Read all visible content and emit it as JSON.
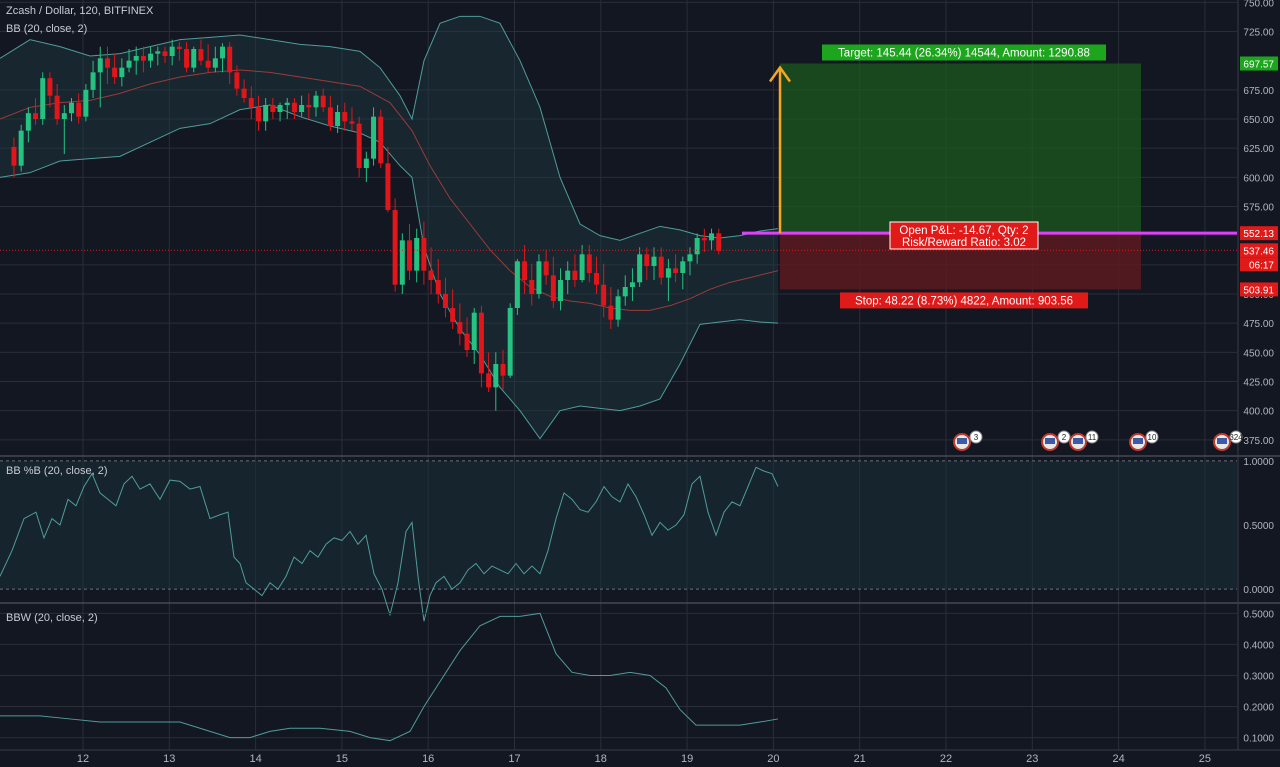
{
  "header": {
    "symbol": "Zcash / Dollar, 120, BITFINEX",
    "indicator_main": "BB (20, close, 2)",
    "indicator_pctb": "BB %B (20, close, 2)",
    "indicator_bbw": "BBW (20, close, 2)"
  },
  "colors": {
    "background": "#131722",
    "grid": "#2a2e39",
    "up": "#26c281",
    "down": "#e0161a",
    "band": "#4f9d9a",
    "basis": "#9b3b3b",
    "target_zone": "#1e5a1e",
    "stop_zone": "#5a1a1e",
    "entry_line": "#e040fb",
    "arrow": "#f5a623",
    "label_green": "#1ea51e",
    "label_red": "#e01919"
  },
  "position": {
    "target_label": "Target: 145.44 (26.34%) 14544, Amount: 1290.88",
    "stop_label": "Stop: 48.22 (8.73%) 4822, Amount: 903.56",
    "pnl_line1": "Open P&L: -14.67, Qty: 2",
    "pnl_line2": "Risk/Reward Ratio: 3.02",
    "entry_price": 552.13,
    "target_price": 697.57,
    "stop_price": 503.91
  },
  "price_tags": {
    "target": "697.57",
    "entry": "552.13",
    "last": "537.46",
    "countdown": "06:17",
    "stop": "503.91"
  },
  "events": [
    {
      "count": "3"
    },
    {
      "count": "2"
    },
    {
      "count": "11"
    },
    {
      "count": "10"
    },
    {
      "count": "324"
    }
  ],
  "chart_data": {
    "type": "candlestick",
    "title": "Zcash / Dollar, 120, BITFINEX",
    "x_ticks": [
      "12",
      "13",
      "14",
      "15",
      "16",
      "17",
      "18",
      "19",
      "20",
      "21",
      "22",
      "23",
      "24",
      "25"
    ],
    "y_ticks": [
      "375.00",
      "400.00",
      "425.00",
      "450.00",
      "475.00",
      "500.00",
      "525.00",
      "575.00",
      "600.00",
      "625.00",
      "650.00",
      "675.00",
      "725.00",
      "750.00"
    ],
    "ylim": [
      362,
      752
    ],
    "pctb_ticks": [
      "0.0000",
      "0.5000",
      "1.0000"
    ],
    "pctb_ylim": [
      -0.1,
      1.03
    ],
    "bbw_ticks": [
      "0.1000",
      "0.2000",
      "0.3000",
      "0.4000",
      "0.5000"
    ],
    "bbw_ylim": [
      0.06,
      0.53
    ],
    "day_start": 11.2,
    "bars_per_day": 12,
    "ohlc": [
      [
        626,
        634,
        600,
        610
      ],
      [
        610,
        645,
        605,
        640
      ],
      [
        640,
        660,
        630,
        655
      ],
      [
        655,
        668,
        645,
        650
      ],
      [
        650,
        690,
        645,
        685
      ],
      [
        685,
        690,
        660,
        670
      ],
      [
        670,
        680,
        645,
        650
      ],
      [
        650,
        662,
        620,
        655
      ],
      [
        655,
        668,
        648,
        664
      ],
      [
        664,
        672,
        646,
        652
      ],
      [
        652,
        680,
        648,
        675
      ],
      [
        675,
        700,
        668,
        690
      ],
      [
        690,
        712,
        660,
        702
      ],
      [
        702,
        712,
        680,
        694
      ],
      [
        694,
        706,
        680,
        686
      ],
      [
        686,
        702,
        678,
        694
      ],
      [
        694,
        710,
        690,
        700
      ],
      [
        700,
        712,
        688,
        704
      ],
      [
        704,
        712,
        690,
        700
      ],
      [
        700,
        712,
        694,
        706
      ],
      [
        706,
        712,
        696,
        708
      ],
      [
        708,
        712,
        698,
        704
      ],
      [
        704,
        718,
        696,
        712
      ],
      [
        712,
        716,
        700,
        710
      ],
      [
        710,
        716,
        690,
        694
      ],
      [
        694,
        712,
        690,
        710
      ],
      [
        710,
        718,
        696,
        700
      ],
      [
        700,
        714,
        690,
        694
      ],
      [
        694,
        712,
        690,
        702
      ],
      [
        702,
        715,
        690,
        712
      ],
      [
        712,
        716,
        680,
        690
      ],
      [
        690,
        696,
        670,
        676
      ],
      [
        676,
        684,
        664,
        668
      ],
      [
        668,
        678,
        650,
        660
      ],
      [
        660,
        670,
        640,
        648
      ],
      [
        648,
        668,
        640,
        662
      ],
      [
        662,
        668,
        650,
        656
      ],
      [
        656,
        664,
        648,
        662
      ],
      [
        662,
        668,
        650,
        664
      ],
      [
        664,
        668,
        650,
        656
      ],
      [
        656,
        670,
        652,
        662
      ],
      [
        662,
        672,
        650,
        660
      ],
      [
        660,
        674,
        652,
        670
      ],
      [
        670,
        676,
        656,
        660
      ],
      [
        660,
        670,
        640,
        644
      ],
      [
        644,
        662,
        638,
        656
      ],
      [
        656,
        664,
        640,
        648
      ],
      [
        648,
        660,
        640,
        646
      ],
      [
        646,
        652,
        600,
        608
      ],
      [
        608,
        622,
        596,
        616
      ],
      [
        616,
        660,
        610,
        652
      ],
      [
        652,
        658,
        608,
        612
      ],
      [
        612,
        626,
        570,
        572
      ],
      [
        572,
        582,
        502,
        508
      ],
      [
        508,
        552,
        500,
        546
      ],
      [
        546,
        560,
        512,
        520
      ],
      [
        520,
        556,
        510,
        548
      ],
      [
        548,
        562,
        508,
        520
      ],
      [
        520,
        540,
        500,
        512
      ],
      [
        512,
        530,
        492,
        500
      ],
      [
        500,
        514,
        480,
        488
      ],
      [
        488,
        504,
        470,
        476
      ],
      [
        476,
        492,
        456,
        466
      ],
      [
        466,
        480,
        446,
        452
      ],
      [
        452,
        488,
        440,
        484
      ],
      [
        484,
        490,
        420,
        432
      ],
      [
        432,
        450,
        416,
        420
      ],
      [
        420,
        450,
        400,
        440
      ],
      [
        440,
        452,
        418,
        430
      ],
      [
        430,
        492,
        428,
        488
      ],
      [
        488,
        530,
        482,
        528
      ],
      [
        528,
        542,
        500,
        512
      ],
      [
        512,
        526,
        490,
        500
      ],
      [
        500,
        534,
        496,
        528
      ],
      [
        528,
        538,
        508,
        516
      ],
      [
        516,
        532,
        488,
        494
      ],
      [
        494,
        522,
        486,
        512
      ],
      [
        512,
        528,
        500,
        520
      ],
      [
        520,
        534,
        506,
        512
      ],
      [
        512,
        542,
        510,
        534
      ],
      [
        534,
        542,
        510,
        518
      ],
      [
        518,
        532,
        500,
        508
      ],
      [
        508,
        526,
        480,
        490
      ],
      [
        490,
        506,
        470,
        478
      ],
      [
        478,
        504,
        472,
        498
      ],
      [
        498,
        516,
        490,
        506
      ],
      [
        506,
        522,
        494,
        510
      ],
      [
        510,
        540,
        506,
        534
      ],
      [
        534,
        540,
        512,
        524
      ],
      [
        524,
        540,
        512,
        532
      ],
      [
        532,
        540,
        508,
        514
      ],
      [
        514,
        530,
        494,
        522
      ],
      [
        522,
        534,
        510,
        518
      ],
      [
        518,
        532,
        504,
        528
      ],
      [
        528,
        540,
        516,
        534
      ],
      [
        534,
        552,
        526,
        548
      ],
      [
        548,
        556,
        536,
        546
      ],
      [
        546,
        556,
        538,
        552
      ],
      [
        552,
        556,
        534,
        537
      ]
    ],
    "bb_upper": [
      [
        0,
        702
      ],
      [
        30,
        718
      ],
      [
        60,
        712
      ],
      [
        90,
        704
      ],
      [
        120,
        706
      ],
      [
        150,
        712
      ],
      [
        180,
        718
      ],
      [
        210,
        720
      ],
      [
        240,
        722
      ],
      [
        270,
        718
      ],
      [
        300,
        714
      ],
      [
        330,
        712
      ],
      [
        360,
        708
      ],
      [
        380,
        694
      ],
      [
        400,
        670
      ],
      [
        412,
        650
      ],
      [
        424,
        700
      ],
      [
        440,
        732
      ],
      [
        460,
        738
      ],
      [
        480,
        738
      ],
      [
        500,
        732
      ],
      [
        520,
        700
      ],
      [
        540,
        660
      ],
      [
        560,
        600
      ],
      [
        580,
        560
      ],
      [
        600,
        550
      ],
      [
        620,
        546
      ],
      [
        640,
        552
      ],
      [
        660,
        558
      ],
      [
        680,
        555
      ],
      [
        700,
        550
      ],
      [
        720,
        548
      ],
      [
        740,
        550
      ],
      [
        760,
        554
      ],
      [
        778,
        556
      ]
    ],
    "bb_lower": [
      [
        0,
        600
      ],
      [
        30,
        604
      ],
      [
        60,
        614
      ],
      [
        90,
        616
      ],
      [
        120,
        618
      ],
      [
        150,
        630
      ],
      [
        180,
        642
      ],
      [
        210,
        646
      ],
      [
        240,
        658
      ],
      [
        270,
        662
      ],
      [
        300,
        652
      ],
      [
        330,
        644
      ],
      [
        360,
        638
      ],
      [
        380,
        630
      ],
      [
        400,
        610
      ],
      [
        412,
        600
      ],
      [
        424,
        540
      ],
      [
        440,
        500
      ],
      [
        460,
        470
      ],
      [
        480,
        448
      ],
      [
        500,
        420
      ],
      [
        520,
        400
      ],
      [
        540,
        376
      ],
      [
        560,
        400
      ],
      [
        580,
        404
      ],
      [
        600,
        402
      ],
      [
        620,
        400
      ],
      [
        640,
        404
      ],
      [
        660,
        410
      ],
      [
        680,
        440
      ],
      [
        700,
        474
      ],
      [
        720,
        476
      ],
      [
        740,
        478
      ],
      [
        760,
        476
      ],
      [
        778,
        475
      ]
    ],
    "bb_basis": [
      [
        0,
        650
      ],
      [
        30,
        660
      ],
      [
        60,
        664
      ],
      [
        90,
        666
      ],
      [
        120,
        672
      ],
      [
        150,
        680
      ],
      [
        180,
        686
      ],
      [
        210,
        690
      ],
      [
        240,
        692
      ],
      [
        270,
        690
      ],
      [
        300,
        686
      ],
      [
        330,
        682
      ],
      [
        360,
        678
      ],
      [
        390,
        664
      ],
      [
        412,
        640
      ],
      [
        430,
        610
      ],
      [
        450,
        582
      ],
      [
        470,
        560
      ],
      [
        490,
        538
      ],
      [
        510,
        520
      ],
      [
        530,
        506
      ],
      [
        550,
        498
      ],
      [
        570,
        494
      ],
      [
        590,
        492
      ],
      [
        610,
        488
      ],
      [
        630,
        486
      ],
      [
        650,
        486
      ],
      [
        670,
        490
      ],
      [
        690,
        496
      ],
      [
        710,
        504
      ],
      [
        730,
        510
      ],
      [
        750,
        514
      ],
      [
        778,
        520
      ]
    ],
    "pctb": [
      [
        0,
        0.1
      ],
      [
        12,
        0.3
      ],
      [
        24,
        0.55
      ],
      [
        36,
        0.6
      ],
      [
        44,
        0.4
      ],
      [
        52,
        0.55
      ],
      [
        60,
        0.5
      ],
      [
        68,
        0.7
      ],
      [
        76,
        0.65
      ],
      [
        84,
        0.8
      ],
      [
        92,
        0.9
      ],
      [
        100,
        0.75
      ],
      [
        108,
        0.7
      ],
      [
        116,
        0.65
      ],
      [
        124,
        0.82
      ],
      [
        132,
        0.88
      ],
      [
        140,
        0.78
      ],
      [
        150,
        0.82
      ],
      [
        160,
        0.7
      ],
      [
        170,
        0.85
      ],
      [
        180,
        0.84
      ],
      [
        190,
        0.78
      ],
      [
        200,
        0.8
      ],
      [
        210,
        0.55
      ],
      [
        220,
        0.58
      ],
      [
        228,
        0.6
      ],
      [
        234,
        0.25
      ],
      [
        240,
        0.2
      ],
      [
        246,
        0.05
      ],
      [
        254,
        0.0
      ],
      [
        262,
        -0.05
      ],
      [
        270,
        0.05
      ],
      [
        278,
        0.0
      ],
      [
        286,
        0.1
      ],
      [
        294,
        0.25
      ],
      [
        302,
        0.2
      ],
      [
        310,
        0.3
      ],
      [
        318,
        0.25
      ],
      [
        326,
        0.35
      ],
      [
        334,
        0.4
      ],
      [
        342,
        0.38
      ],
      [
        350,
        0.45
      ],
      [
        358,
        0.35
      ],
      [
        366,
        0.42
      ],
      [
        374,
        0.12
      ],
      [
        382,
        0.0
      ],
      [
        390,
        -0.2
      ],
      [
        398,
        0.05
      ],
      [
        406,
        0.45
      ],
      [
        412,
        0.52
      ],
      [
        418,
        0.1
      ],
      [
        424,
        -0.25
      ],
      [
        430,
        -0.05
      ],
      [
        436,
        0.05
      ],
      [
        444,
        0.1
      ],
      [
        452,
        0.0
      ],
      [
        460,
        0.05
      ],
      [
        468,
        0.15
      ],
      [
        476,
        0.2
      ],
      [
        484,
        0.12
      ],
      [
        492,
        0.18
      ],
      [
        500,
        0.15
      ],
      [
        508,
        0.12
      ],
      [
        516,
        0.2
      ],
      [
        524,
        0.12
      ],
      [
        532,
        0.18
      ],
      [
        540,
        0.12
      ],
      [
        548,
        0.3
      ],
      [
        556,
        0.55
      ],
      [
        564,
        0.75
      ],
      [
        572,
        0.7
      ],
      [
        580,
        0.62
      ],
      [
        588,
        0.6
      ],
      [
        596,
        0.68
      ],
      [
        604,
        0.8
      ],
      [
        612,
        0.72
      ],
      [
        620,
        0.68
      ],
      [
        628,
        0.82
      ],
      [
        636,
        0.72
      ],
      [
        644,
        0.58
      ],
      [
        652,
        0.42
      ],
      [
        660,
        0.52
      ],
      [
        668,
        0.46
      ],
      [
        676,
        0.5
      ],
      [
        684,
        0.58
      ],
      [
        692,
        0.82
      ],
      [
        700,
        0.88
      ],
      [
        708,
        0.6
      ],
      [
        716,
        0.42
      ],
      [
        724,
        0.6
      ],
      [
        732,
        0.68
      ],
      [
        740,
        0.65
      ],
      [
        748,
        0.8
      ],
      [
        756,
        0.95
      ],
      [
        764,
        0.92
      ],
      [
        772,
        0.9
      ],
      [
        778,
        0.8
      ]
    ],
    "bbw": [
      [
        0,
        0.17
      ],
      [
        40,
        0.17
      ],
      [
        70,
        0.16
      ],
      [
        100,
        0.15
      ],
      [
        140,
        0.15
      ],
      [
        180,
        0.15
      ],
      [
        210,
        0.12
      ],
      [
        230,
        0.1
      ],
      [
        250,
        0.1
      ],
      [
        270,
        0.12
      ],
      [
        290,
        0.13
      ],
      [
        320,
        0.13
      ],
      [
        350,
        0.12
      ],
      [
        370,
        0.1
      ],
      [
        390,
        0.09
      ],
      [
        410,
        0.12
      ],
      [
        424,
        0.2
      ],
      [
        440,
        0.28
      ],
      [
        460,
        0.38
      ],
      [
        480,
        0.46
      ],
      [
        500,
        0.49
      ],
      [
        520,
        0.49
      ],
      [
        540,
        0.5
      ],
      [
        556,
        0.37
      ],
      [
        572,
        0.31
      ],
      [
        590,
        0.3
      ],
      [
        610,
        0.3
      ],
      [
        630,
        0.31
      ],
      [
        650,
        0.3
      ],
      [
        666,
        0.26
      ],
      [
        680,
        0.19
      ],
      [
        696,
        0.14
      ],
      [
        716,
        0.14
      ],
      [
        740,
        0.14
      ],
      [
        760,
        0.15
      ],
      [
        778,
        0.16
      ]
    ]
  }
}
